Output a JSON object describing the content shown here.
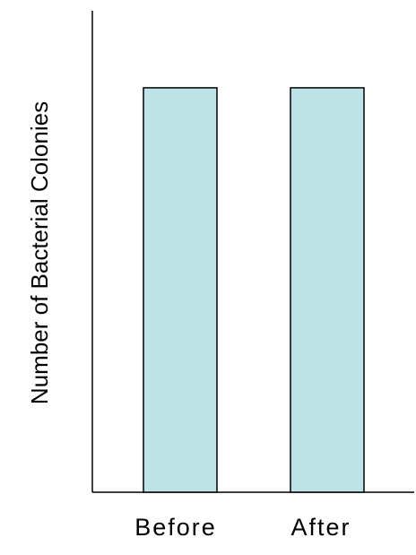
{
  "chart_data": {
    "type": "bar",
    "categories": [
      "Before",
      "After"
    ],
    "values": [
      0.84,
      0.84
    ],
    "xlabel": "",
    "ylabel": "Number of Bacterial Colonies",
    "ylim": [
      0,
      1
    ],
    "grid": false,
    "legend": "none",
    "colors": {
      "bar_fill": "#bde3e6",
      "bar_stroke": "#000000",
      "axis": "#000000"
    }
  }
}
